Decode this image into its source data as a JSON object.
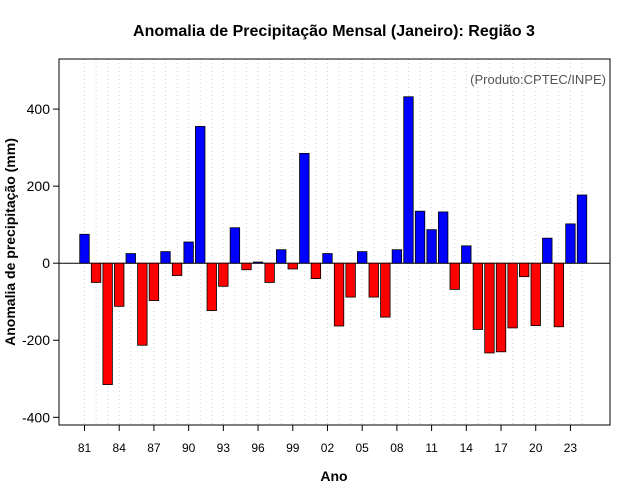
{
  "chart_data": {
    "type": "bar",
    "title": "Anomalia de Precipitação Mensal (Janeiro): Região 3",
    "annotation": "(Produto:CPTEC/INPE)",
    "xlabel": "Ano",
    "ylabel": "Anomalia de precipitação (mm)",
    "ylim": [
      -420,
      530
    ],
    "yticks": [
      -400,
      -200,
      0,
      200,
      400
    ],
    "x_tick_labels": [
      "81",
      "84",
      "87",
      "90",
      "93",
      "96",
      "99",
      "02",
      "05",
      "08",
      "11",
      "14",
      "17",
      "20",
      "23"
    ],
    "x_tick_every": 3,
    "grid": "vertical dotted per year",
    "positive_color": "#0000ff",
    "negative_color": "#ff0000",
    "categories": [
      "1981",
      "1982",
      "1983",
      "1984",
      "1985",
      "1986",
      "1987",
      "1988",
      "1989",
      "1990",
      "1991",
      "1992",
      "1993",
      "1994",
      "1995",
      "1996",
      "1997",
      "1998",
      "1999",
      "2000",
      "2001",
      "2002",
      "2003",
      "2004",
      "2005",
      "2006",
      "2007",
      "2008",
      "2009",
      "2010",
      "2011",
      "2012",
      "2013",
      "2014",
      "2015",
      "2016",
      "2017",
      "2018",
      "2019",
      "2020",
      "2021",
      "2022",
      "2023",
      "2024"
    ],
    "values": [
      75,
      -50,
      -315,
      -112,
      25,
      -213,
      -97,
      30,
      -32,
      55,
      355,
      -123,
      -60,
      92,
      -17,
      3,
      -50,
      35,
      -15,
      285,
      -40,
      25,
      -163,
      -88,
      30,
      -88,
      -140,
      35,
      432,
      135,
      87,
      133,
      -68,
      45,
      -172,
      -233,
      -230,
      -168,
      -35,
      -162,
      65,
      -165,
      102,
      177
    ]
  }
}
